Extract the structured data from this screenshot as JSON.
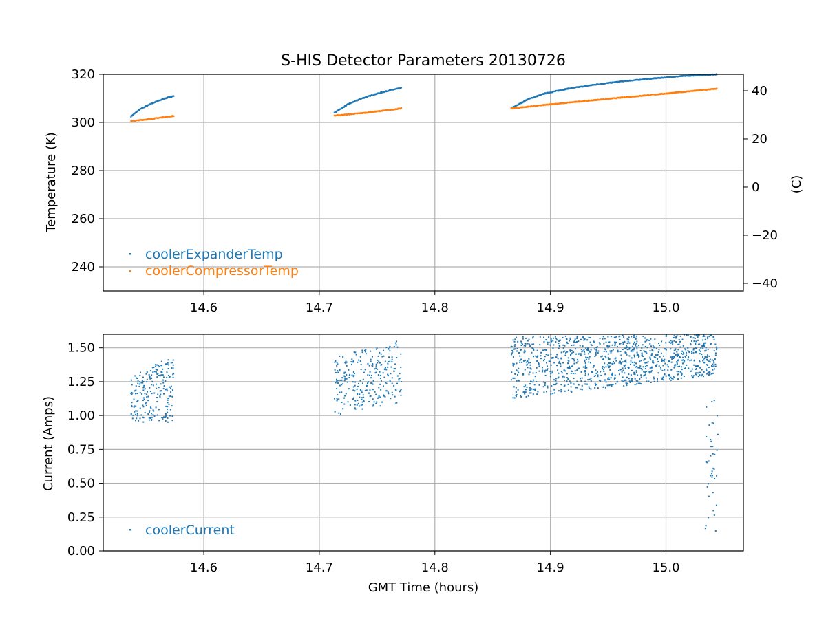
{
  "chart_data": [
    {
      "type": "scatter",
      "title": "S-HIS Detector Parameters 20130726",
      "xlabel": "",
      "ylabel": "Temperature (K)",
      "ylabel_right": "(C)",
      "xlim": [
        14.513,
        15.067
      ],
      "ylim": [
        230,
        320
      ],
      "ylim_right": [
        -43.15,
        46.85
      ],
      "xticks": [
        "14.6",
        "14.7",
        "14.8",
        "14.9",
        "15.0"
      ],
      "yticks": [
        "240",
        "260",
        "280",
        "300",
        "320"
      ],
      "yticks_right": [
        "−40",
        "−20",
        "0",
        "20",
        "40"
      ],
      "grid": true,
      "legend_position": "lower-left",
      "series": [
        {
          "name": "coolerExpanderTemp",
          "color": "#1f77b4",
          "segments": [
            {
              "x": [
                14.537,
                14.545,
                14.553,
                14.561,
                14.568,
                14.574
              ],
              "y": [
                302.5,
                305.5,
                307.5,
                309.0,
                310.2,
                311.0
              ]
            },
            {
              "x": [
                14.713,
                14.725,
                14.737,
                14.749,
                14.76,
                14.771
              ],
              "y": [
                304.0,
                307.6,
                310.0,
                311.8,
                313.2,
                314.3
              ]
            },
            {
              "x": [
                14.866,
                14.88,
                14.895,
                14.915,
                14.94,
                14.965,
                14.99,
                15.015,
                15.044
              ],
              "y": [
                305.8,
                309.5,
                312.0,
                314.0,
                315.8,
                317.2,
                318.3,
                319.3,
                320.0
              ]
            }
          ]
        },
        {
          "name": "coolerCompressorTemp",
          "color": "#ff7f0e",
          "segments": [
            {
              "x": [
                14.537,
                14.555,
                14.574
              ],
              "y": [
                300.5,
                301.5,
                302.7
              ]
            },
            {
              "x": [
                14.713,
                14.74,
                14.771
              ],
              "y": [
                302.8,
                304.0,
                305.8
              ]
            },
            {
              "x": [
                14.866,
                14.9,
                14.95,
                15.0,
                15.044
              ],
              "y": [
                305.8,
                307.5,
                309.8,
                312.0,
                314.0
              ]
            }
          ]
        }
      ]
    },
    {
      "type": "scatter",
      "title": "",
      "xlabel": "GMT Time (hours)",
      "ylabel": "Current (Amps)",
      "xlim": [
        14.513,
        15.067
      ],
      "ylim": [
        0,
        1.6
      ],
      "xticks": [
        "14.6",
        "14.7",
        "14.8",
        "14.9",
        "15.0"
      ],
      "yticks": [
        "0.00",
        "0.25",
        "0.50",
        "0.75",
        "1.00",
        "1.25",
        "1.50"
      ],
      "grid": true,
      "legend_position": "lower-left",
      "series": [
        {
          "name": "coolerCurrent",
          "color": "#1f77b4",
          "clusters": [
            {
              "x": [
                14.537,
                14.574
              ],
              "y_low": [
                0.95,
                0.95
              ],
              "y_high": [
                1.3,
                1.45
              ],
              "count": 220
            },
            {
              "x": [
                14.713,
                14.771
              ],
              "y_low": [
                1.0,
                1.1
              ],
              "y_high": [
                1.43,
                1.56
              ],
              "count": 280
            },
            {
              "x": [
                14.866,
                15.044
              ],
              "y_low": [
                1.12,
                1.3
              ],
              "y_high": [
                1.58,
                1.6
              ],
              "count": 1100
            },
            {
              "x": [
                15.034,
                15.045
              ],
              "y_low": [
                0.14,
                0.14
              ],
              "y_high": [
                1.12,
                1.12
              ],
              "count": 40
            }
          ]
        }
      ]
    }
  ]
}
